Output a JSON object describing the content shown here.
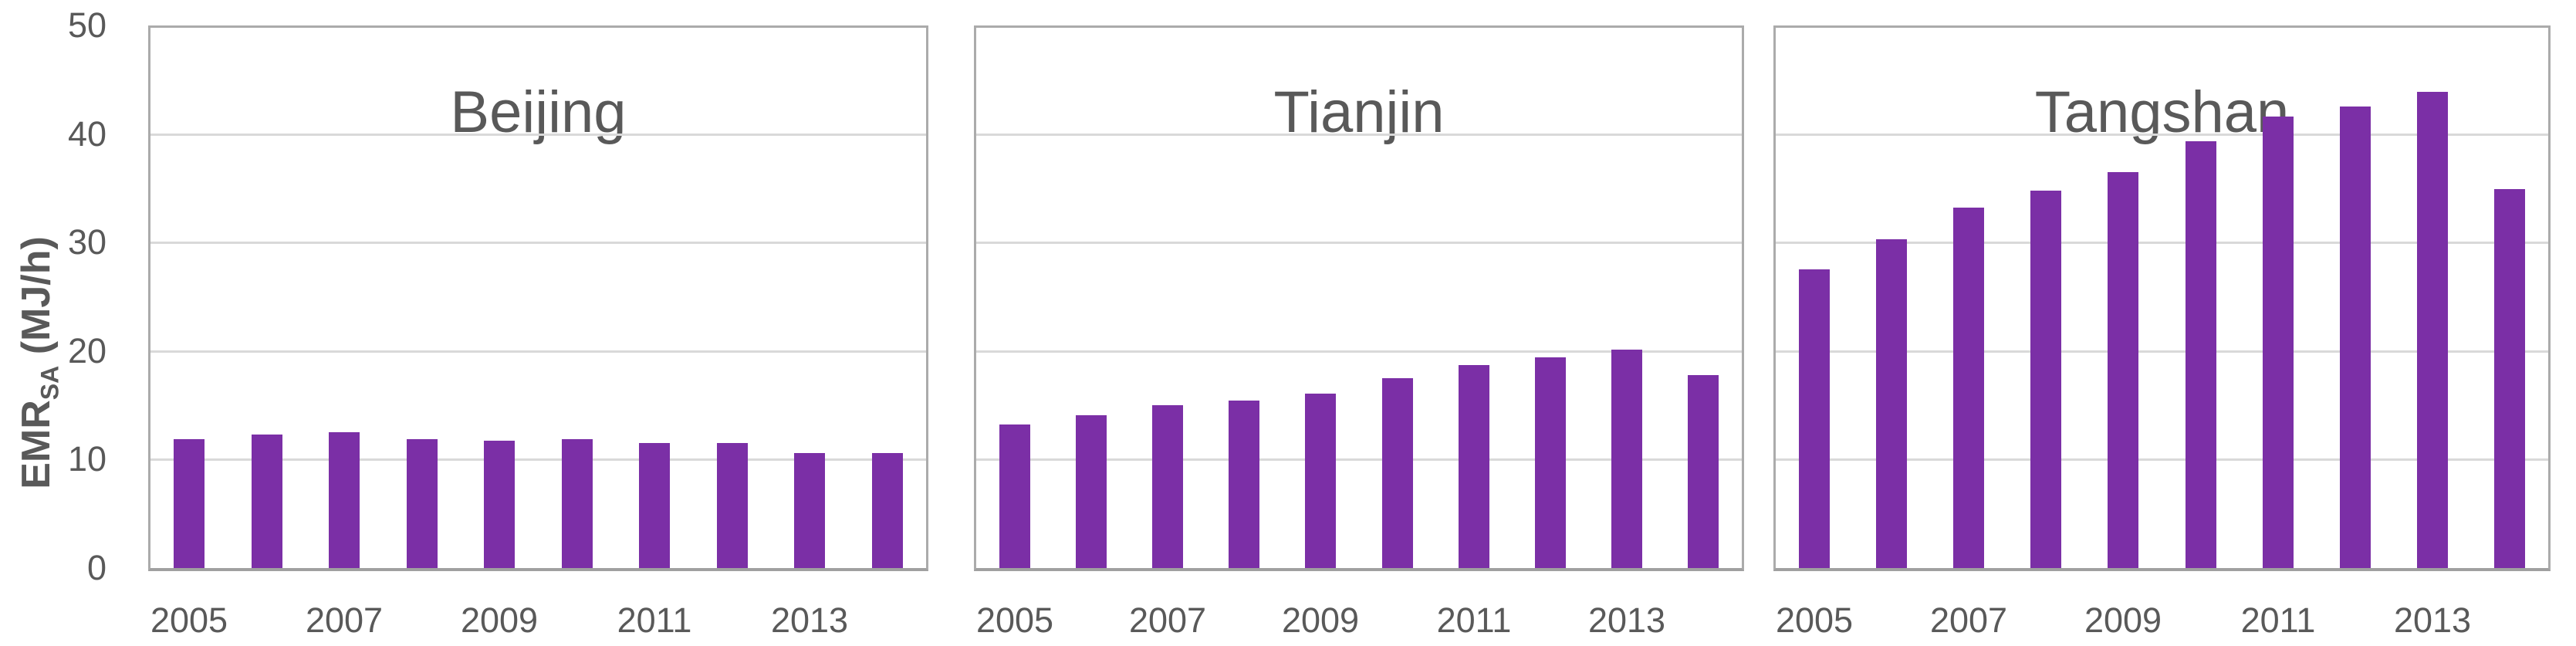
{
  "figure": {
    "background": "#FFFFFF",
    "bar_color": "#7B2FA6",
    "border_color": "#ABABAB",
    "gridline_color": "#D9D9D9",
    "text_color": "#595959"
  },
  "y_axis": {
    "label_main": "EMR",
    "label_subscript": "SA",
    "label_unit": " (MJ/h)",
    "ticks": [
      0,
      10,
      20,
      30,
      40,
      50
    ],
    "range": [
      0,
      50
    ],
    "grid": true
  },
  "chart_data": [
    {
      "type": "bar",
      "title": "Beijing",
      "categories": [
        "2005",
        "2006",
        "2007",
        "2008",
        "2009",
        "2010",
        "2011",
        "2012",
        "2013",
        "2014"
      ],
      "values": [
        11.9,
        12.3,
        12.5,
        11.9,
        11.7,
        11.9,
        11.5,
        11.5,
        10.6,
        10.6
      ],
      "x_tick_labels": [
        "2005",
        "2007",
        "2009",
        "2011",
        "2013"
      ],
      "xlabel": "",
      "ylabel": "EMR_SA (MJ/h)",
      "ylim": [
        0,
        50
      ],
      "legend": "none"
    },
    {
      "type": "bar",
      "title": "Tianjin",
      "categories": [
        "2005",
        "2006",
        "2007",
        "2008",
        "2009",
        "2010",
        "2011",
        "2012",
        "2013",
        "2014"
      ],
      "values": [
        13.2,
        14.1,
        15.0,
        15.4,
        16.1,
        17.5,
        18.7,
        19.4,
        20.1,
        17.8
      ],
      "x_tick_labels": [
        "2005",
        "2007",
        "2009",
        "2011",
        "2013"
      ],
      "xlabel": "",
      "ylabel": "EMR_SA (MJ/h)",
      "ylim": [
        0,
        50
      ],
      "legend": "none"
    },
    {
      "type": "bar",
      "title": "Tangshan",
      "categories": [
        "2005",
        "2006",
        "2007",
        "2008",
        "2009",
        "2010",
        "2011",
        "2012",
        "2013",
        "2014"
      ],
      "values": [
        27.5,
        30.3,
        33.2,
        34.8,
        36.5,
        39.3,
        41.6,
        42.5,
        43.9,
        34.9
      ],
      "x_tick_labels": [
        "2005",
        "2007",
        "2009",
        "2011",
        "2013"
      ],
      "xlabel": "",
      "ylabel": "EMR_SA (MJ/h)",
      "ylim": [
        0,
        50
      ],
      "legend": "none"
    }
  ]
}
